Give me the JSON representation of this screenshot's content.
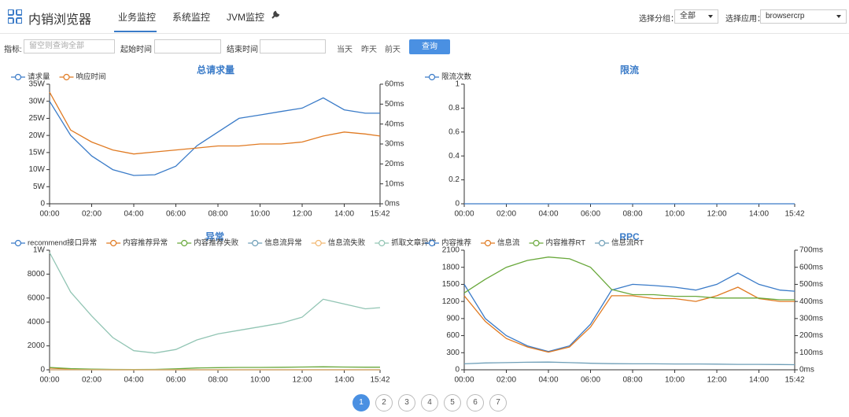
{
  "header": {
    "app_title": "内销浏览器",
    "tabs": [
      "业务监控",
      "系统监控",
      "JVM监控"
    ],
    "group_label": "选择分组：",
    "group_value": "全部",
    "app_label": "选择应用：",
    "app_value": "browsercrp"
  },
  "filters": {
    "metric_label": "指标:",
    "metric_placeholder": "留空则查询全部",
    "start_label": "起始时间",
    "end_label": "结束时间",
    "quick": [
      "当天",
      "昨天",
      "前天"
    ],
    "query_button": "查询"
  },
  "chart_data": [
    {
      "type": "line",
      "title": "总请求量",
      "x": [
        0,
        60,
        120,
        180,
        240,
        300,
        360,
        420,
        480,
        540,
        600,
        660,
        720,
        780,
        840,
        900,
        942
      ],
      "xlim": [
        0,
        942
      ],
      "xticks": [
        {
          "value": 0,
          "label": "00:00"
        },
        {
          "value": 120,
          "label": "02:00"
        },
        {
          "value": 240,
          "label": "04:00"
        },
        {
          "value": 360,
          "label": "06:00"
        },
        {
          "value": 480,
          "label": "08:00"
        },
        {
          "value": 600,
          "label": "10:00"
        },
        {
          "value": 720,
          "label": "12:00"
        },
        {
          "value": 840,
          "label": "14:00"
        },
        {
          "value": 942,
          "label": "15:42"
        }
      ],
      "ylim": [
        0,
        35
      ],
      "yticks": [
        0,
        {
          "value": 5,
          "label": "5W"
        },
        {
          "value": 10,
          "label": "10W"
        },
        {
          "value": 15,
          "label": "15W"
        },
        {
          "value": 20,
          "label": "20W"
        },
        {
          "value": 25,
          "label": "25W"
        },
        {
          "value": 30,
          "label": "30W"
        },
        {
          "value": 35,
          "label": "35W"
        }
      ],
      "y2lim": [
        0,
        60
      ],
      "y2ticks": [
        {
          "value": 0,
          "label": "0ms"
        },
        {
          "value": 10,
          "label": "10ms"
        },
        {
          "value": 20,
          "label": "20ms"
        },
        {
          "value": 30,
          "label": "30ms"
        },
        {
          "value": 40,
          "label": "40ms"
        },
        {
          "value": 50,
          "label": "50ms"
        },
        {
          "value": 60,
          "label": "60ms"
        }
      ],
      "grid": false,
      "series": [
        {
          "name": "请求量",
          "color": "#3a7bc8",
          "values": [
            30,
            20,
            14,
            10,
            8.3,
            8.5,
            11,
            17,
            21,
            25,
            26,
            27,
            28,
            31,
            27.5,
            26.5,
            26.5
          ]
        },
        {
          "name": "响应时间",
          "color": "#e07a22",
          "axis": "y2",
          "values": [
            56,
            37,
            31,
            27,
            25,
            26,
            27,
            28,
            29,
            29,
            30,
            30,
            31,
            34,
            36,
            35,
            34
          ]
        }
      ]
    },
    {
      "type": "line",
      "title": "限流",
      "x": [
        0,
        60,
        120,
        180,
        240,
        300,
        360,
        420,
        480,
        540,
        600,
        660,
        720,
        780,
        840,
        900,
        942
      ],
      "xlim": [
        0,
        942
      ],
      "xticks": [
        {
          "value": 0,
          "label": "00:00"
        },
        {
          "value": 120,
          "label": "02:00"
        },
        {
          "value": 240,
          "label": "04:00"
        },
        {
          "value": 360,
          "label": "06:00"
        },
        {
          "value": 480,
          "label": "08:00"
        },
        {
          "value": 600,
          "label": "10:00"
        },
        {
          "value": 720,
          "label": "12:00"
        },
        {
          "value": 840,
          "label": "14:00"
        },
        {
          "value": 942,
          "label": "15:42"
        }
      ],
      "ylim": [
        0,
        1
      ],
      "yticks": [
        0,
        0.2,
        0.4,
        0.6,
        0.8,
        1
      ],
      "grid": false,
      "series": [
        {
          "name": "限流次数",
          "color": "#3a7bc8",
          "values": [
            0,
            0,
            0,
            0,
            0,
            0,
            0,
            0,
            0,
            0,
            0,
            0,
            0,
            0,
            0,
            0,
            0
          ]
        }
      ]
    },
    {
      "type": "line",
      "title": "异常",
      "x": [
        0,
        60,
        120,
        180,
        240,
        300,
        360,
        420,
        480,
        540,
        600,
        660,
        720,
        780,
        840,
        900,
        942
      ],
      "xlim": [
        0,
        942
      ],
      "xticks": [
        {
          "value": 0,
          "label": "00:00"
        },
        {
          "value": 120,
          "label": "02:00"
        },
        {
          "value": 240,
          "label": "04:00"
        },
        {
          "value": 360,
          "label": "06:00"
        },
        {
          "value": 480,
          "label": "08:00"
        },
        {
          "value": 600,
          "label": "10:00"
        },
        {
          "value": 720,
          "label": "12:00"
        },
        {
          "value": 840,
          "label": "14:00"
        },
        {
          "value": 942,
          "label": "15:42"
        }
      ],
      "ylim": [
        0,
        10000
      ],
      "yticks": [
        0,
        2000,
        4000,
        6000,
        8000,
        {
          "value": 10000,
          "label": "1W"
        }
      ],
      "grid": false,
      "series": [
        {
          "name": "recommend接口异常",
          "color": "#3a7bc8",
          "values": [
            0,
            0,
            0,
            0,
            0,
            0,
            0,
            0,
            0,
            0,
            0,
            0,
            0,
            0,
            0,
            0,
            0
          ]
        },
        {
          "name": "内容推荐异常",
          "color": "#e07a22",
          "values": [
            150,
            50,
            10,
            0,
            0,
            0,
            0,
            0,
            0,
            0,
            0,
            0,
            0,
            0,
            0,
            0,
            0
          ]
        },
        {
          "name": "内容推荐失败",
          "color": "#69a83b",
          "values": [
            200,
            100,
            50,
            30,
            20,
            30,
            80,
            150,
            180,
            200,
            200,
            210,
            230,
            250,
            230,
            220,
            220
          ]
        },
        {
          "name": "信息流异常",
          "color": "#6f9fb8",
          "values": [
            0,
            0,
            0,
            0,
            0,
            0,
            0,
            0,
            0,
            0,
            0,
            0,
            0,
            0,
            0,
            0,
            0
          ]
        },
        {
          "name": "信息流失败",
          "color": "#f2b872",
          "values": [
            0,
            0,
            0,
            0,
            0,
            0,
            0,
            0,
            0,
            0,
            0,
            0,
            0,
            0,
            0,
            0,
            0
          ]
        },
        {
          "name": "抓取文章异常",
          "color": "#92c5b4",
          "values": [
            9800,
            6500,
            4500,
            2700,
            1600,
            1400,
            1700,
            2500,
            3000,
            3300,
            3600,
            3900,
            4400,
            5900,
            5500,
            5100,
            5200
          ]
        }
      ]
    },
    {
      "type": "line",
      "title": "RPC",
      "x": [
        0,
        60,
        120,
        180,
        240,
        300,
        360,
        420,
        480,
        540,
        600,
        660,
        720,
        780,
        840,
        900,
        942
      ],
      "xlim": [
        0,
        942
      ],
      "xticks": [
        {
          "value": 0,
          "label": "00:00"
        },
        {
          "value": 120,
          "label": "02:00"
        },
        {
          "value": 240,
          "label": "04:00"
        },
        {
          "value": 360,
          "label": "06:00"
        },
        {
          "value": 480,
          "label": "08:00"
        },
        {
          "value": 600,
          "label": "10:00"
        },
        {
          "value": 720,
          "label": "12:00"
        },
        {
          "value": 840,
          "label": "14:00"
        },
        {
          "value": 942,
          "label": "15:42"
        }
      ],
      "ylim": [
        0,
        2100
      ],
      "yticks": [
        0,
        300,
        600,
        900,
        1200,
        1500,
        1800,
        2100
      ],
      "y2lim": [
        0,
        700
      ],
      "y2ticks": [
        {
          "value": 0,
          "label": "0ms"
        },
        {
          "value": 100,
          "label": "100ms"
        },
        {
          "value": 200,
          "label": "200ms"
        },
        {
          "value": 300,
          "label": "300ms"
        },
        {
          "value": 400,
          "label": "400ms"
        },
        {
          "value": 500,
          "label": "500ms"
        },
        {
          "value": 600,
          "label": "600ms"
        },
        {
          "value": 700,
          "label": "700ms"
        }
      ],
      "grid": false,
      "series": [
        {
          "name": "内容推荐",
          "color": "#3a7bc8",
          "values": [
            1500,
            900,
            600,
            420,
            320,
            420,
            800,
            1400,
            1500,
            1480,
            1450,
            1400,
            1500,
            1700,
            1500,
            1400,
            1380
          ]
        },
        {
          "name": "信息流",
          "color": "#e07a22",
          "values": [
            1300,
            850,
            550,
            400,
            310,
            400,
            750,
            1300,
            1300,
            1250,
            1250,
            1200,
            1300,
            1450,
            1250,
            1200,
            1200
          ]
        },
        {
          "name": "内容推荐RT",
          "color": "#69a83b",
          "axis": "y2",
          "values": [
            450,
            530,
            600,
            640,
            660,
            650,
            600,
            470,
            440,
            440,
            430,
            430,
            420,
            420,
            420,
            410,
            410
          ]
        },
        {
          "name": "信息流RT",
          "color": "#6f9fb8",
          "axis": "y2",
          "values": [
            35,
            40,
            42,
            44,
            45,
            42,
            38,
            36,
            35,
            35,
            34,
            34,
            33,
            32,
            32,
            31,
            30
          ]
        }
      ]
    }
  ],
  "pagination": {
    "pages": [
      1,
      2,
      3,
      4,
      5,
      6,
      7
    ]
  }
}
